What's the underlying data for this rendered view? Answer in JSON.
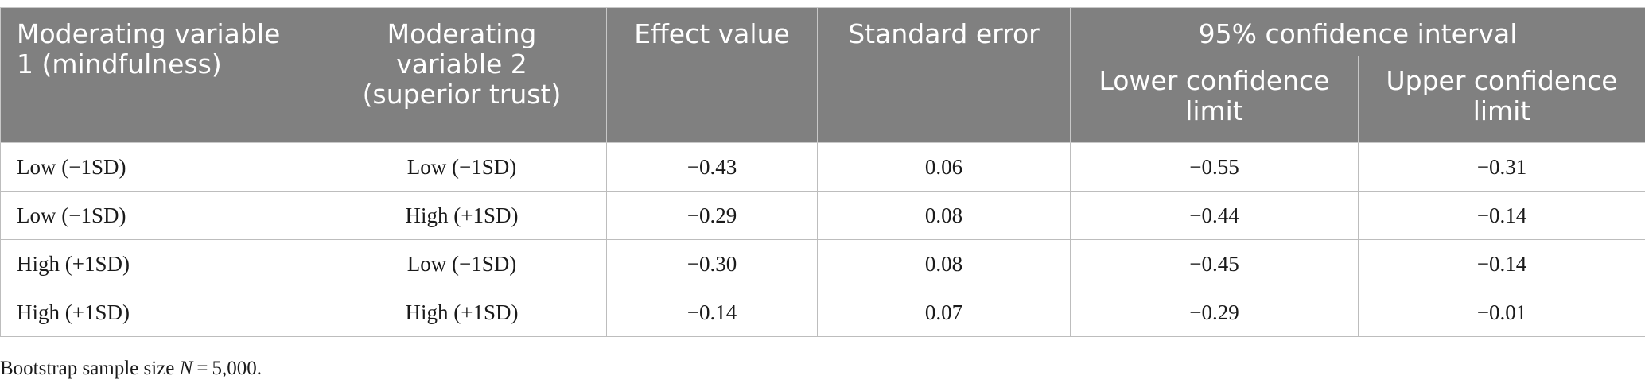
{
  "table": {
    "headers": {
      "col1": "Moderating variable 1 (mindfulness)",
      "col2": "Moderating variable 2 (superior trust)",
      "col3": "Effect value",
      "col4": "Standard error",
      "group": "95% confidence interval",
      "col5": "Lower confidence limit",
      "col6": "Upper confidence limit"
    },
    "rows": [
      [
        "Low (−1SD)",
        "Low (−1SD)",
        "−0.43",
        "0.06",
        "−0.55",
        "−0.31"
      ],
      [
        "Low (−1SD)",
        "High (+1SD)",
        "−0.29",
        "0.08",
        "−0.44",
        "−0.14"
      ],
      [
        "High (+1SD)",
        "Low (−1SD)",
        "−0.30",
        "0.08",
        "−0.45",
        "−0.14"
      ],
      [
        "High (+1SD)",
        "High (+1SD)",
        "−0.14",
        "0.07",
        "−0.29",
        "−0.01"
      ]
    ]
  },
  "note": {
    "prefix": "Bootstrap sample size ",
    "symbol": "N",
    "value": " = 5,000."
  }
}
